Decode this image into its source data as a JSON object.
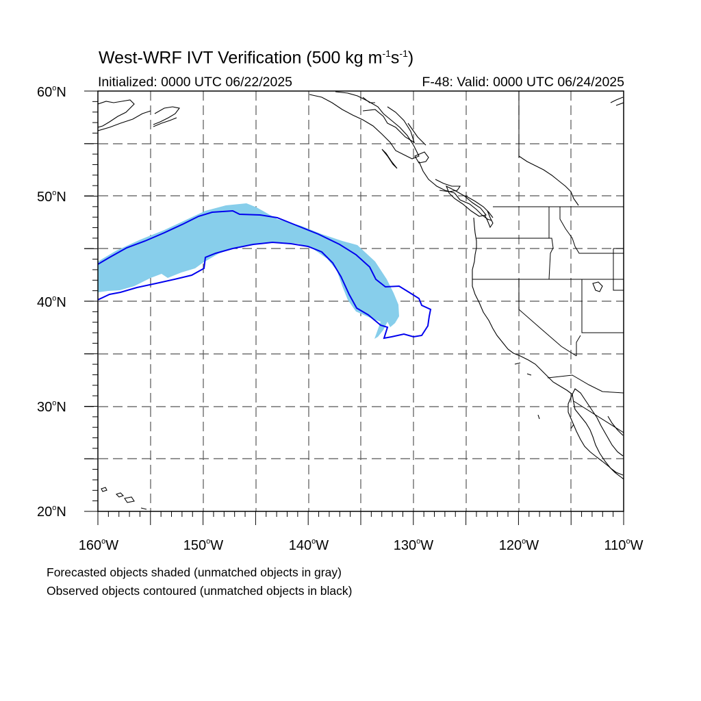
{
  "title": {
    "main": "West-WRF IVT Verification (500 kg m",
    "exp1": "-1",
    "mid": "s",
    "exp2": "-1",
    "close": ")"
  },
  "initialized": "Initialized: 0000 UTC 06/22/2025",
  "valid": "F-48: Valid: 0000 UTC 06/24/2025",
  "lat_labels": [
    {
      "value": "60",
      "hemi": "N"
    },
    {
      "value": "50",
      "hemi": "N"
    },
    {
      "value": "40",
      "hemi": "N"
    },
    {
      "value": "30",
      "hemi": "N"
    },
    {
      "value": "20",
      "hemi": "N"
    }
  ],
  "lon_labels": [
    {
      "value": "160",
      "hemi": "W"
    },
    {
      "value": "150",
      "hemi": "W"
    },
    {
      "value": "140",
      "hemi": "W"
    },
    {
      "value": "130",
      "hemi": "W"
    },
    {
      "value": "120",
      "hemi": "W"
    },
    {
      "value": "110",
      "hemi": "W"
    }
  ],
  "degree_symbol": "o",
  "captions": [
    "Forecasted objects shaded (unmatched objects in gray)",
    "Observed objects contoured (unmatched objects in black)"
  ],
  "colors": {
    "forecast_fill": "#87ceeb",
    "observed_contour": "#0000ee",
    "coastline": "#000000",
    "grid": "#555555"
  },
  "map": {
    "lon_range": [
      -160,
      -110
    ],
    "lat_range": [
      20,
      60
    ],
    "grid_spacing_deg": 5
  }
}
